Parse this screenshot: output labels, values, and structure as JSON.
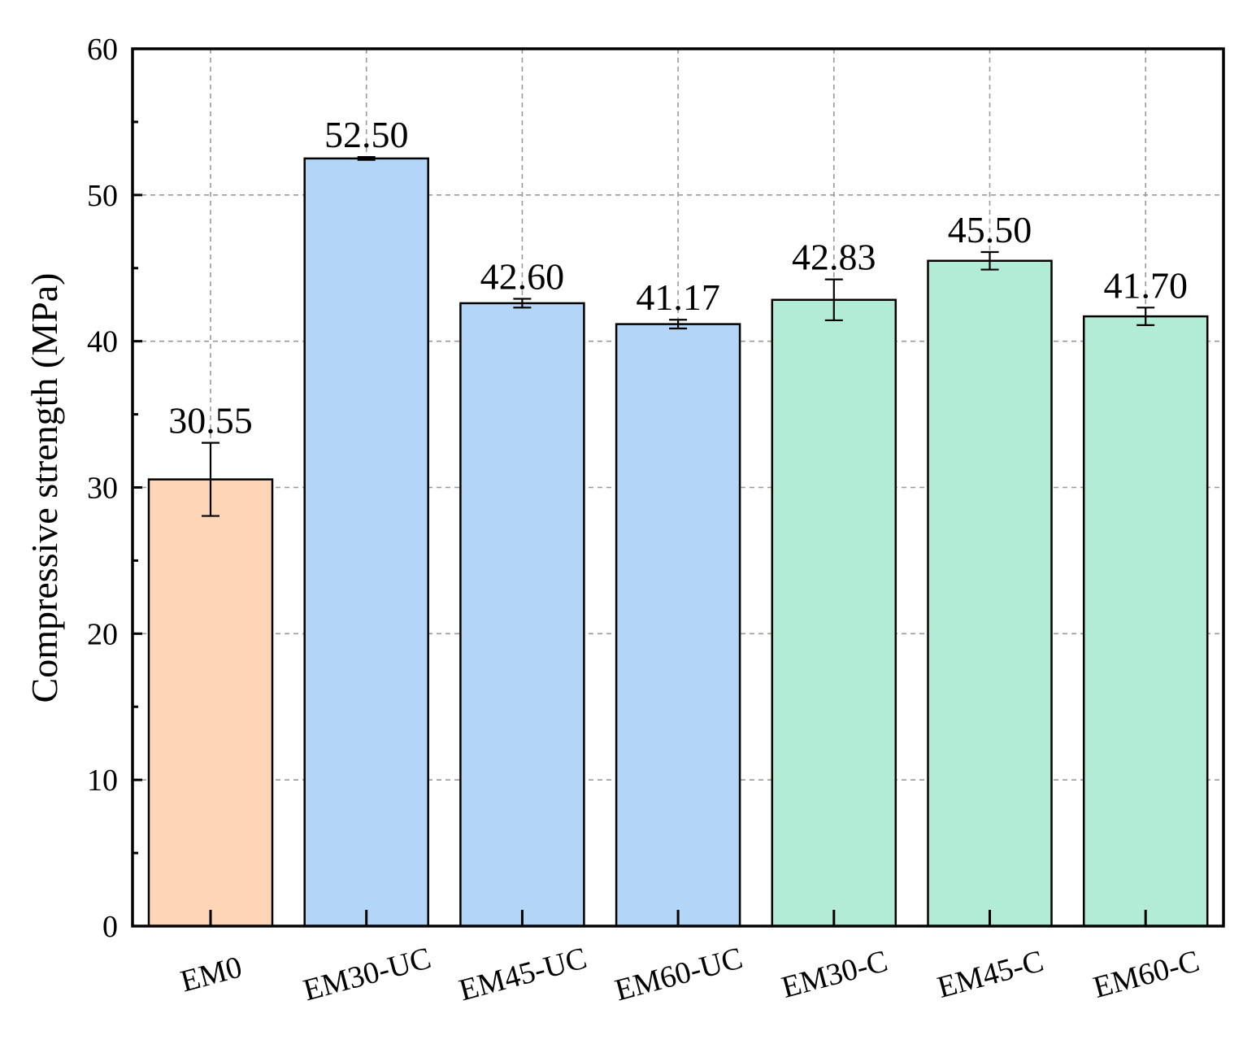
{
  "chart_data": {
    "type": "bar",
    "categories": [
      "EM0",
      "EM30-UC",
      "EM45-UC",
      "EM60-UC",
      "EM30-C",
      "EM45-C",
      "EM60-C"
    ],
    "values": [
      30.55,
      52.5,
      42.6,
      41.17,
      42.83,
      45.5,
      41.7
    ],
    "value_labels": [
      "30.55",
      "52.50",
      "42.60",
      "41.17",
      "42.83",
      "45.50",
      "41.70"
    ],
    "error": [
      2.5,
      0.1,
      0.3,
      0.3,
      1.4,
      0.6,
      0.6
    ],
    "bar_colors": [
      "#FFD5B8",
      "#B3D6F8",
      "#B3D6F8",
      "#B3D6F8",
      "#B3ECD6",
      "#B3ECD6",
      "#B3ECD6"
    ],
    "ylabel": "Compressive strength (MPa)",
    "xlabel": "",
    "ylim": [
      0,
      60
    ],
    "yticks": [
      0,
      10,
      20,
      30,
      40,
      50,
      60
    ],
    "grid": true,
    "grid_style": "dashed"
  }
}
